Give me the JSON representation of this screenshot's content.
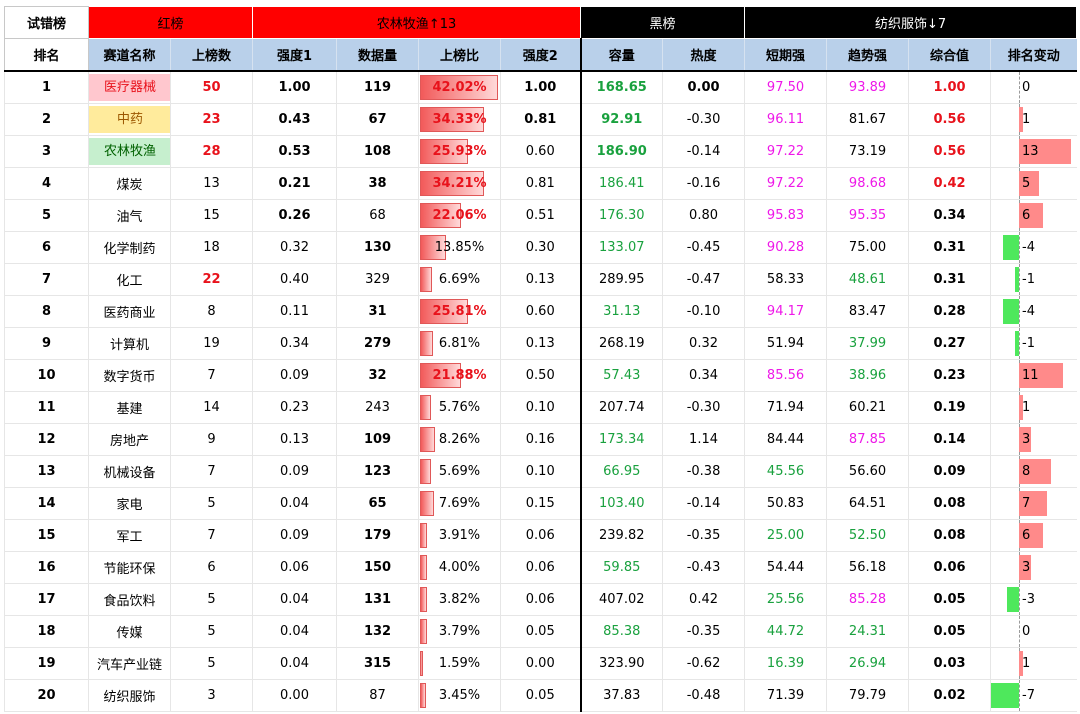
{
  "top": {
    "trial": "试错榜",
    "red": "红榜",
    "up": "农林牧渔↑13",
    "black": "黑榜",
    "down": "纺织服饰↓7"
  },
  "headers": [
    "排名",
    "赛道名称",
    "上榜数",
    "强度1",
    "数据量",
    "上榜比",
    "强度2",
    "容量",
    "热度",
    "短期强",
    "趋势强",
    "综合值",
    "排名变动"
  ],
  "colors": {
    "red_bg": "#ff0000",
    "black_bg": "#000000",
    "header_bg": "#b9d0ea",
    "pink": "#ffc7ce",
    "yellow": "#ffeb9c",
    "lightgreen": "#c6efce",
    "red_text": "#e8121b",
    "green_text": "#19a13e",
    "magenta_text": "#ee18e8"
  },
  "rows": [
    {
      "rank": "1",
      "name": "医疗器械",
      "count": "50",
      "s1": "1.00",
      "data": "119",
      "ratio": "42.02%",
      "ratio_v": 42.02,
      "s2": "1.00",
      "cap": "168.65",
      "heat": "0.00",
      "short": "97.50",
      "trend": "93.89",
      "total": "1.00",
      "chg": "0",
      "chg_v": 0
    },
    {
      "rank": "2",
      "name": "中药",
      "count": "23",
      "s1": "0.43",
      "data": "67",
      "ratio": "34.33%",
      "ratio_v": 34.33,
      "s2": "0.81",
      "cap": "92.91",
      "heat": "-0.30",
      "short": "96.11",
      "trend": "81.67",
      "total": "0.56",
      "chg": "1",
      "chg_v": 1
    },
    {
      "rank": "3",
      "name": "农林牧渔",
      "count": "28",
      "s1": "0.53",
      "data": "108",
      "ratio": "25.93%",
      "ratio_v": 25.93,
      "s2": "0.60",
      "cap": "186.90",
      "heat": "-0.14",
      "short": "97.22",
      "trend": "73.19",
      "total": "0.56",
      "chg": "13",
      "chg_v": 13
    },
    {
      "rank": "4",
      "name": "煤炭",
      "count": "13",
      "s1": "0.21",
      "data": "38",
      "ratio": "34.21%",
      "ratio_v": 34.21,
      "s2": "0.81",
      "cap": "186.41",
      "heat": "-0.16",
      "short": "97.22",
      "trend": "98.68",
      "total": "0.42",
      "chg": "5",
      "chg_v": 5
    },
    {
      "rank": "5",
      "name": "油气",
      "count": "15",
      "s1": "0.26",
      "data": "68",
      "ratio": "22.06%",
      "ratio_v": 22.06,
      "s2": "0.51",
      "cap": "176.30",
      "heat": "0.80",
      "short": "95.83",
      "trend": "95.35",
      "total": "0.34",
      "chg": "6",
      "chg_v": 6
    },
    {
      "rank": "6",
      "name": "化学制药",
      "count": "18",
      "s1": "0.32",
      "data": "130",
      "ratio": "13.85%",
      "ratio_v": 13.85,
      "s2": "0.30",
      "cap": "133.07",
      "heat": "-0.45",
      "short": "90.28",
      "trend": "75.00",
      "total": "0.31",
      "chg": "-4",
      "chg_v": -4
    },
    {
      "rank": "7",
      "name": "化工",
      "count": "22",
      "s1": "0.40",
      "data": "329",
      "ratio": "6.69%",
      "ratio_v": 6.69,
      "s2": "0.13",
      "cap": "289.95",
      "heat": "-0.47",
      "short": "58.33",
      "trend": "48.61",
      "total": "0.31",
      "chg": "-1",
      "chg_v": -1
    },
    {
      "rank": "8",
      "name": "医药商业",
      "count": "8",
      "s1": "0.11",
      "data": "31",
      "ratio": "25.81%",
      "ratio_v": 25.81,
      "s2": "0.60",
      "cap": "31.13",
      "heat": "-0.10",
      "short": "94.17",
      "trend": "83.47",
      "total": "0.28",
      "chg": "-4",
      "chg_v": -4
    },
    {
      "rank": "9",
      "name": "计算机",
      "count": "19",
      "s1": "0.34",
      "data": "279",
      "ratio": "6.81%",
      "ratio_v": 6.81,
      "s2": "0.13",
      "cap": "268.19",
      "heat": "0.32",
      "short": "51.94",
      "trend": "37.99",
      "total": "0.27",
      "chg": "-1",
      "chg_v": -1
    },
    {
      "rank": "10",
      "name": "数字货币",
      "count": "7",
      "s1": "0.09",
      "data": "32",
      "ratio": "21.88%",
      "ratio_v": 21.88,
      "s2": "0.50",
      "cap": "57.43",
      "heat": "0.34",
      "short": "85.56",
      "trend": "38.96",
      "total": "0.23",
      "chg": "11",
      "chg_v": 11
    },
    {
      "rank": "11",
      "name": "基建",
      "count": "14",
      "s1": "0.23",
      "data": "243",
      "ratio": "5.76%",
      "ratio_v": 5.76,
      "s2": "0.10",
      "cap": "207.74",
      "heat": "-0.30",
      "short": "71.94",
      "trend": "60.21",
      "total": "0.19",
      "chg": "1",
      "chg_v": 1
    },
    {
      "rank": "12",
      "name": "房地产",
      "count": "9",
      "s1": "0.13",
      "data": "109",
      "ratio": "8.26%",
      "ratio_v": 8.26,
      "s2": "0.16",
      "cap": "173.34",
      "heat": "1.14",
      "short": "84.44",
      "trend": "87.85",
      "total": "0.14",
      "chg": "3",
      "chg_v": 3
    },
    {
      "rank": "13",
      "name": "机械设备",
      "count": "7",
      "s1": "0.09",
      "data": "123",
      "ratio": "5.69%",
      "ratio_v": 5.69,
      "s2": "0.10",
      "cap": "66.95",
      "heat": "-0.38",
      "short": "45.56",
      "trend": "56.60",
      "total": "0.09",
      "chg": "8",
      "chg_v": 8
    },
    {
      "rank": "14",
      "name": "家电",
      "count": "5",
      "s1": "0.04",
      "data": "65",
      "ratio": "7.69%",
      "ratio_v": 7.69,
      "s2": "0.15",
      "cap": "103.40",
      "heat": "-0.14",
      "short": "50.83",
      "trend": "64.51",
      "total": "0.08",
      "chg": "7",
      "chg_v": 7
    },
    {
      "rank": "15",
      "name": "军工",
      "count": "7",
      "s1": "0.09",
      "data": "179",
      "ratio": "3.91%",
      "ratio_v": 3.91,
      "s2": "0.06",
      "cap": "239.82",
      "heat": "-0.35",
      "short": "25.00",
      "trend": "52.50",
      "total": "0.08",
      "chg": "6",
      "chg_v": 6
    },
    {
      "rank": "16",
      "name": "节能环保",
      "count": "6",
      "s1": "0.06",
      "data": "150",
      "ratio": "4.00%",
      "ratio_v": 4.0,
      "s2": "0.06",
      "cap": "59.85",
      "heat": "-0.43",
      "short": "54.44",
      "trend": "56.18",
      "total": "0.06",
      "chg": "3",
      "chg_v": 3
    },
    {
      "rank": "17",
      "name": "食品饮料",
      "count": "5",
      "s1": "0.04",
      "data": "131",
      "ratio": "3.82%",
      "ratio_v": 3.82,
      "s2": "0.06",
      "cap": "407.02",
      "heat": "0.42",
      "short": "25.56",
      "trend": "85.28",
      "total": "0.05",
      "chg": "-3",
      "chg_v": -3
    },
    {
      "rank": "18",
      "name": "传媒",
      "count": "5",
      "s1": "0.04",
      "data": "132",
      "ratio": "3.79%",
      "ratio_v": 3.79,
      "s2": "0.05",
      "cap": "85.38",
      "heat": "-0.35",
      "short": "44.72",
      "trend": "24.31",
      "total": "0.05",
      "chg": "0",
      "chg_v": 0
    },
    {
      "rank": "19",
      "name": "汽车产业链",
      "count": "5",
      "s1": "0.04",
      "data": "315",
      "ratio": "1.59%",
      "ratio_v": 1.59,
      "s2": "0.00",
      "cap": "323.90",
      "heat": "-0.62",
      "short": "16.39",
      "trend": "26.94",
      "total": "0.03",
      "chg": "1",
      "chg_v": 1
    },
    {
      "rank": "20",
      "name": "纺织服饰",
      "count": "3",
      "s1": "0.00",
      "data": "87",
      "ratio": "3.45%",
      "ratio_v": 3.45,
      "s2": "0.05",
      "cap": "37.83",
      "heat": "-0.48",
      "short": "71.39",
      "trend": "79.79",
      "total": "0.02",
      "chg": "-7",
      "chg_v": -7
    }
  ]
}
